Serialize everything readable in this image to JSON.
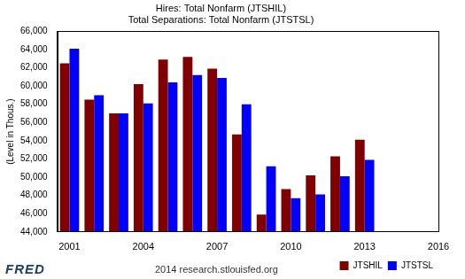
{
  "chart_data": {
    "type": "bar",
    "title": "Hires: Total Nonfarm (JTSHIL)",
    "subtitle": "Total Separations: Total Nonfarm (JTSTSL)",
    "y_label": "(Level in Thous.)",
    "annotations": [
      "FRED",
      "2014 research.stlouisfed.org"
    ],
    "x": [
      2001,
      2002,
      2003,
      2004,
      2005,
      2006,
      2007,
      2008,
      2009,
      2010,
      2011,
      2012,
      2013
    ],
    "series": [
      {
        "name": "JTSHIL",
        "color": "#800000",
        "values": [
          62500,
          58500,
          57000,
          60200,
          62900,
          63200,
          61900,
          54700,
          45900,
          48700,
          50200,
          52300,
          54100
        ]
      },
      {
        "name": "JTSTSL",
        "color": "#0000ff",
        "values": [
          64100,
          59000,
          57000,
          58100,
          60400,
          61200,
          60900,
          58000,
          51200,
          47700,
          48100,
          50100,
          51900
        ]
      }
    ],
    "xlim": [
      2000.5,
      2016
    ],
    "xticks": [
      2001,
      2004,
      2007,
      2010,
      2013,
      2016
    ],
    "ylim": [
      44000,
      66000
    ],
    "yticks": [
      {
        "value": 44000,
        "label": "44,000"
      },
      {
        "value": 46000,
        "label": "46,000"
      },
      {
        "value": 48000,
        "label": "48,000"
      },
      {
        "value": 50000,
        "label": "50,000"
      },
      {
        "value": 52000,
        "label": "52,000"
      },
      {
        "value": 54000,
        "label": "54,000"
      },
      {
        "value": 56000,
        "label": "56,000"
      },
      {
        "value": 58000,
        "label": "58,000"
      },
      {
        "value": 60000,
        "label": "60,000"
      },
      {
        "value": 62000,
        "label": "62,000"
      },
      {
        "value": 64000,
        "label": "64,000"
      },
      {
        "value": 66000,
        "label": "66,000"
      }
    ],
    "grid": false,
    "legend": "lower right"
  }
}
